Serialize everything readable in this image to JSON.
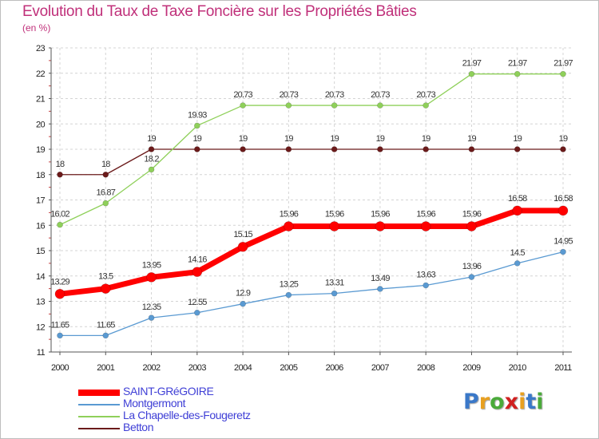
{
  "title": "Evolution du Taux de Taxe Foncière sur les Propriétés Bâties",
  "unit_label": "(en %)",
  "logo": {
    "letters": [
      {
        "ch": "P",
        "color": "#3a78c8"
      },
      {
        "ch": "r",
        "color": "#e8a020"
      },
      {
        "ch": "o",
        "color": "#4aaa3a"
      },
      {
        "ch": "x",
        "color": "#d02020"
      },
      {
        "ch": "i",
        "color": "#e8a020"
      },
      {
        "ch": "t",
        "color": "#3a78c8"
      },
      {
        "ch": "i",
        "color": "#4aaa3a"
      }
    ]
  },
  "chart_data": {
    "type": "line",
    "title": "Evolution du Taux de Taxe Foncière sur les Propriétés Bâties",
    "xlabel": "",
    "ylabel": "(en %)",
    "x": [
      "2000",
      "2001",
      "2002",
      "2003",
      "2004",
      "2005",
      "2006",
      "2007",
      "2008",
      "2009",
      "2010",
      "2011"
    ],
    "ylim": [
      11,
      23
    ],
    "yticks": [
      "11",
      "12",
      "13",
      "14",
      "15",
      "16",
      "17",
      "18",
      "19",
      "20",
      "21",
      "22",
      "23"
    ],
    "grid": true,
    "legend_position": "bottom-left",
    "series": [
      {
        "name": "SAINT-GRéGOIRE",
        "color": "#ff0000",
        "values": [
          13.29,
          13.5,
          13.95,
          14.16,
          15.15,
          15.96,
          15.96,
          15.96,
          15.96,
          15.96,
          16.58,
          16.58
        ],
        "labels": [
          "13.29",
          "13.5",
          "13.95",
          "14.16",
          "15.15",
          "15.96",
          "15.96",
          "15.96",
          "15.96",
          "15.96",
          "16.58",
          "16.58"
        ]
      },
      {
        "name": "Montgermont",
        "color": "#5a9ad2",
        "values": [
          11.65,
          11.65,
          12.35,
          12.55,
          12.9,
          13.25,
          13.31,
          13.49,
          13.63,
          13.96,
          14.5,
          14.95
        ],
        "labels": [
          "11.65",
          "11.65",
          "12.35",
          "12.55",
          "12.9",
          "13.25",
          "13.31",
          "13.49",
          "13.63",
          "13.96",
          "14.5",
          "14.95"
        ]
      },
      {
        "name": "La Chapelle-des-Fougeretz",
        "color": "#8fd05a",
        "values": [
          16.02,
          16.87,
          18.2,
          19.93,
          20.73,
          20.73,
          20.73,
          20.73,
          20.73,
          21.97,
          21.97,
          21.97
        ],
        "labels": [
          "16.02",
          "16.87",
          "18.2",
          "19.93",
          "20.73",
          "20.73",
          "20.73",
          "20.73",
          "20.73",
          "21.97",
          "21.97",
          "21.97"
        ]
      },
      {
        "name": "Betton",
        "color": "#6b1a1a",
        "values": [
          18,
          18,
          19,
          19,
          19,
          19,
          19,
          19,
          19,
          19,
          19,
          19
        ],
        "labels": [
          "18",
          "18",
          "19",
          "19",
          "19",
          "19",
          "19",
          "19",
          "19",
          "19",
          "19",
          "19"
        ]
      }
    ]
  }
}
